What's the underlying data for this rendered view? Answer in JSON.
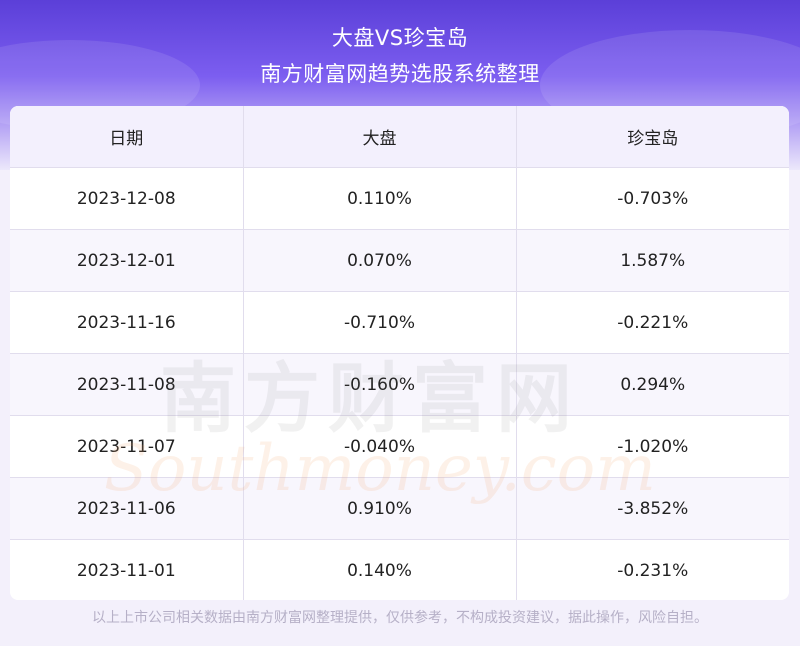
{
  "header": {
    "title": "大盘VS珍宝岛",
    "subtitle": "南方财富网趋势选股系统整理"
  },
  "table": {
    "columns": [
      "日期",
      "大盘",
      "珍宝岛"
    ],
    "rows": [
      [
        "2023-12-08",
        "0.110%",
        "-0.703%"
      ],
      [
        "2023-12-01",
        "0.070%",
        "1.587%"
      ],
      [
        "2023-11-16",
        "-0.710%",
        "-0.221%"
      ],
      [
        "2023-11-08",
        "-0.160%",
        "0.294%"
      ],
      [
        "2023-11-07",
        "-0.040%",
        "-1.020%"
      ],
      [
        "2023-11-06",
        "0.910%",
        "-3.852%"
      ],
      [
        "2023-11-01",
        "0.140%",
        "-0.231%"
      ]
    ]
  },
  "watermark": {
    "cn": "南方财富网",
    "en": "Southmoney.com"
  },
  "footer": {
    "disclaimer": "以上上市公司相关数据由南方财富网整理提供，仅供参考，不构成投资建议，据此操作，风险自担。"
  },
  "colors": {
    "banner_top": "#5b3fd8",
    "header_row_bg": "#f3f0fd",
    "footer_text": "#b6b0c7"
  }
}
